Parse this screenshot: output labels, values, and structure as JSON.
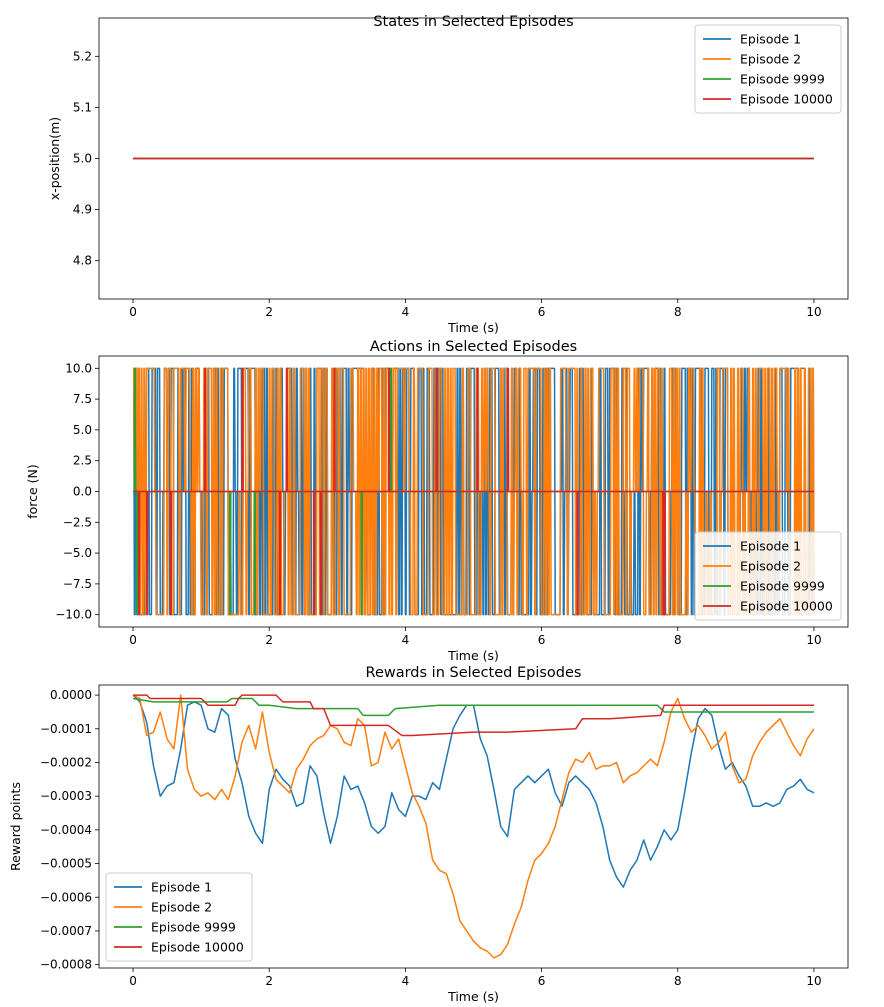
{
  "chart_data": [
    {
      "type": "line",
      "title": "States in Selected Episodes",
      "xlabel": "Time (s)",
      "ylabel": "x-position(m)",
      "xlim": [
        -0.5,
        10.5
      ],
      "ylim": [
        4.725,
        5.275
      ],
      "xticks": [
        0,
        2,
        4,
        6,
        8,
        10
      ],
      "yticks": [
        4.8,
        4.9,
        5.0,
        5.1,
        5.2
      ],
      "ytick_labels": [
        "4.8",
        "4.9",
        "5.0",
        "5.1",
        "5.2"
      ],
      "legend_loc": "upper right",
      "grid": false,
      "series": [
        {
          "name": "Episode 1",
          "color": "#1f77b4",
          "x": [
            0,
            10
          ],
          "y": [
            5.0,
            5.0
          ]
        },
        {
          "name": "Episode 2",
          "color": "#ff7f0e",
          "x": [
            0,
            10
          ],
          "y": [
            5.0,
            5.0
          ]
        },
        {
          "name": "Episode 9999",
          "color": "#2ca02c",
          "x": [
            0,
            10
          ],
          "y": [
            5.0,
            5.0
          ]
        },
        {
          "name": "Episode 10000",
          "color": "#d62728",
          "x": [
            0,
            10
          ],
          "y": [
            5.0,
            5.0
          ]
        }
      ]
    },
    {
      "type": "line",
      "title": "Actions in Selected Episodes",
      "xlabel": "Time (s)",
      "ylabel": "force (N)",
      "xlim": [
        -0.5,
        10.5
      ],
      "ylim": [
        -11,
        11
      ],
      "xticks": [
        0,
        2,
        4,
        6,
        8,
        10
      ],
      "yticks": [
        -10.0,
        -7.5,
        -5.0,
        -2.5,
        0.0,
        2.5,
        5.0,
        7.5,
        10.0
      ],
      "ytick_labels": [
        "−10.0",
        "−7.5",
        "−5.0",
        "−2.5",
        "0.0",
        "2.5",
        "5.0",
        "7.5",
        "10.0"
      ],
      "legend_loc": "lower right",
      "grid": false,
      "series": [
        {
          "name": "Episode 1",
          "color": "#1f77b4",
          "levels": [
            -10,
            0,
            10
          ],
          "duration": 10,
          "samples": 500,
          "note_pattern": "bang-bang"
        },
        {
          "name": "Episode 2",
          "color": "#ff7f0e",
          "levels": [
            -10,
            0,
            10
          ],
          "duration": 10,
          "samples": 500
        },
        {
          "name": "Episode 9999",
          "color": "#2ca02c",
          "baseline": 0,
          "spikes": [
            {
              "x": 0.02,
              "y": 10
            },
            {
              "x": 0.05,
              "y": -10
            },
            {
              "x": 1.42,
              "y": -10
            },
            {
              "x": 1.78,
              "y": -10
            },
            {
              "x": 3.35,
              "y": -10
            },
            {
              "x": 3.78,
              "y": 10
            }
          ]
        },
        {
          "name": "Episode 10000",
          "color": "#d62728",
          "baseline": 0,
          "spikes": [
            {
              "x": 0.08,
              "y": -10
            },
            {
              "x": 0.2,
              "y": -10
            },
            {
              "x": 0.55,
              "y": -10
            },
            {
              "x": 1.05,
              "y": 10
            },
            {
              "x": 1.6,
              "y": 10
            },
            {
              "x": 2.15,
              "y": -10
            },
            {
              "x": 2.25,
              "y": 10
            },
            {
              "x": 2.65,
              "y": -10
            },
            {
              "x": 2.75,
              "y": -10
            },
            {
              "x": 2.95,
              "y": 10
            },
            {
              "x": 3.75,
              "y": 10
            },
            {
              "x": 4.45,
              "y": 10
            },
            {
              "x": 5.05,
              "y": 10
            },
            {
              "x": 5.5,
              "y": 10
            },
            {
              "x": 6.52,
              "y": -10
            },
            {
              "x": 7.78,
              "y": -10
            },
            {
              "x": 7.8,
              "y": -10
            }
          ]
        }
      ]
    },
    {
      "type": "line",
      "title": "Rewards in Selected Episodes",
      "xlabel": "Time (s)",
      "ylabel": "Reward points",
      "xlim": [
        -0.5,
        10.5
      ],
      "ylim": [
        -0.00081,
        3e-05
      ],
      "xticks": [
        0,
        2,
        4,
        6,
        8,
        10
      ],
      "yticks": [
        -0.0008,
        -0.0007,
        -0.0006,
        -0.0005,
        -0.0004,
        -0.0003,
        -0.0002,
        -0.0001,
        0.0
      ],
      "ytick_labels": [
        "−0.0008",
        "−0.0007",
        "−0.0006",
        "−0.0005",
        "−0.0004",
        "−0.0003",
        "−0.0002",
        "−0.0001",
        "0.0000"
      ],
      "legend_loc": "lower left",
      "grid": false,
      "series": [
        {
          "name": "Episode 1",
          "color": "#1f77b4",
          "x": [
            0,
            0.1,
            0.2,
            0.3,
            0.4,
            0.5,
            0.6,
            0.7,
            0.8,
            0.9,
            1.0,
            1.1,
            1.2,
            1.3,
            1.4,
            1.5,
            1.6,
            1.7,
            1.8,
            1.9,
            2.0,
            2.1,
            2.2,
            2.3,
            2.4,
            2.5,
            2.6,
            2.7,
            2.8,
            2.9,
            3.0,
            3.1,
            3.2,
            3.3,
            3.4,
            3.5,
            3.6,
            3.7,
            3.8,
            3.9,
            4.0,
            4.1,
            4.2,
            4.3,
            4.4,
            4.5,
            4.6,
            4.7,
            4.8,
            4.9,
            5.0,
            5.1,
            5.2,
            5.3,
            5.4,
            5.5,
            5.6,
            5.7,
            5.8,
            5.9,
            6.0,
            6.1,
            6.2,
            6.3,
            6.4,
            6.5,
            6.6,
            6.7,
            6.8,
            6.9,
            7.0,
            7.1,
            7.2,
            7.3,
            7.4,
            7.5,
            7.6,
            7.7,
            7.8,
            7.9,
            8.0,
            8.1,
            8.2,
            8.3,
            8.4,
            8.5,
            8.6,
            8.7,
            8.8,
            8.9,
            9.0,
            9.1,
            9.2,
            9.3,
            9.4,
            9.5,
            9.6,
            9.7,
            9.8,
            9.9,
            10.0
          ],
          "y": [
            0,
            -2e-05,
            -8e-05,
            -0.00021,
            -0.0003,
            -0.00027,
            -0.00026,
            -0.00016,
            -3e-05,
            -2e-05,
            -3e-05,
            -0.0001,
            -0.00011,
            -4e-05,
            -6e-05,
            -0.00019,
            -0.00026,
            -0.00036,
            -0.00041,
            -0.00044,
            -0.00028,
            -0.00022,
            -0.00025,
            -0.00027,
            -0.00033,
            -0.00032,
            -0.00021,
            -0.00024,
            -0.00035,
            -0.00044,
            -0.00036,
            -0.00024,
            -0.00028,
            -0.00027,
            -0.00032,
            -0.00039,
            -0.00041,
            -0.00039,
            -0.00029,
            -0.00034,
            -0.00036,
            -0.0003,
            -0.0003,
            -0.00031,
            -0.00026,
            -0.00028,
            -0.00019,
            -0.0001,
            -6e-05,
            -3e-05,
            -3e-05,
            -0.00013,
            -0.00018,
            -0.00028,
            -0.00039,
            -0.00042,
            -0.00028,
            -0.00026,
            -0.00024,
            -0.00026,
            -0.00024,
            -0.00022,
            -0.00029,
            -0.00033,
            -0.00026,
            -0.00024,
            -0.00026,
            -0.00028,
            -0.00032,
            -0.00039,
            -0.00049,
            -0.00054,
            -0.00057,
            -0.00052,
            -0.00049,
            -0.00043,
            -0.00049,
            -0.00045,
            -0.0004,
            -0.00043,
            -0.0004,
            -0.00029,
            -0.00017,
            -7e-05,
            -4e-05,
            -6e-05,
            -0.00015,
            -0.00022,
            -0.0002,
            -0.00024,
            -0.00027,
            -0.00033,
            -0.00033,
            -0.00032,
            -0.00033,
            -0.00032,
            -0.00028,
            -0.00027,
            -0.00025,
            -0.00028,
            -0.00029
          ]
        },
        {
          "name": "Episode 2",
          "color": "#ff7f0e",
          "x": [
            0,
            0.1,
            0.2,
            0.3,
            0.4,
            0.5,
            0.6,
            0.7,
            0.8,
            0.9,
            1.0,
            1.1,
            1.2,
            1.3,
            1.4,
            1.5,
            1.6,
            1.7,
            1.8,
            1.9,
            2.0,
            2.1,
            2.2,
            2.3,
            2.4,
            2.5,
            2.6,
            2.7,
            2.8,
            2.9,
            3.0,
            3.1,
            3.2,
            3.3,
            3.4,
            3.5,
            3.6,
            3.7,
            3.8,
            3.9,
            4.0,
            4.1,
            4.2,
            4.3,
            4.4,
            4.5,
            4.6,
            4.7,
            4.8,
            4.9,
            5.0,
            5.1,
            5.2,
            5.3,
            5.4,
            5.5,
            5.6,
            5.7,
            5.8,
            5.9,
            6.0,
            6.1,
            6.2,
            6.3,
            6.4,
            6.5,
            6.6,
            6.7,
            6.8,
            6.9,
            7.0,
            7.1,
            7.2,
            7.3,
            7.4,
            7.5,
            7.6,
            7.7,
            7.8,
            7.9,
            8.0,
            8.1,
            8.2,
            8.3,
            8.4,
            8.5,
            8.6,
            8.7,
            8.8,
            8.9,
            9.0,
            9.1,
            9.2,
            9.3,
            9.4,
            9.5,
            9.6,
            9.7,
            9.8,
            9.9,
            10.0
          ],
          "y": [
            0,
            -1e-05,
            -0.00012,
            -0.00011,
            -5e-05,
            -0.00013,
            -0.00016,
            0,
            -0.00022,
            -0.00028,
            -0.0003,
            -0.00029,
            -0.00031,
            -0.00028,
            -0.00031,
            -0.00024,
            -0.00014,
            -9e-05,
            -0.00016,
            -5e-05,
            -0.00017,
            -0.00025,
            -0.00027,
            -0.00029,
            -0.00022,
            -0.00019,
            -0.00015,
            -0.00013,
            -0.00012,
            -9e-05,
            -0.0001,
            -0.00014,
            -0.00015,
            -7e-05,
            -9e-05,
            -0.00021,
            -0.0002,
            -0.00011,
            -0.00016,
            -0.00013,
            -0.00021,
            -0.00029,
            -0.00033,
            -0.00038,
            -0.00049,
            -0.00052,
            -0.00053,
            -0.00059,
            -0.00067,
            -0.0007,
            -0.00073,
            -0.00075,
            -0.00076,
            -0.00078,
            -0.00077,
            -0.00074,
            -0.00068,
            -0.00063,
            -0.00055,
            -0.00049,
            -0.00047,
            -0.00044,
            -0.00039,
            -0.00031,
            -0.00023,
            -0.00019,
            -0.0002,
            -0.00017,
            -0.00022,
            -0.00021,
            -0.00021,
            -0.0002,
            -0.00026,
            -0.00024,
            -0.00023,
            -0.00021,
            -0.00019,
            -0.00021,
            -0.00014,
            -5e-05,
            -1e-05,
            -7e-05,
            -0.00011,
            -9e-05,
            -0.00012,
            -0.00016,
            -0.00014,
            -0.00011,
            -0.00021,
            -0.00026,
            -0.00025,
            -0.00018,
            -0.00014,
            -0.00011,
            -9e-05,
            -7e-05,
            -0.00011,
            -0.00015,
            -0.00018,
            -0.00013,
            -0.0001
          ]
        },
        {
          "name": "Episode 9999",
          "color": "#2ca02c",
          "x": [
            0,
            0.3,
            0.5,
            1.0,
            1.38,
            1.45,
            1.6,
            1.75,
            1.85,
            2.0,
            2.4,
            3.3,
            3.38,
            3.45,
            3.75,
            3.85,
            4.5,
            6.0,
            7.0,
            7.7,
            7.8,
            8.0,
            9.0,
            10.0
          ],
          "y": [
            -1e-05,
            -2e-05,
            -2e-05,
            -2e-05,
            -2e-05,
            -1e-05,
            -1e-05,
            -1e-05,
            -3e-05,
            -3e-05,
            -4e-05,
            -4e-05,
            -6e-05,
            -6e-05,
            -6e-05,
            -4e-05,
            -3e-05,
            -3e-05,
            -3e-05,
            -3e-05,
            -5e-05,
            -5e-05,
            -5e-05,
            -5e-05
          ]
        },
        {
          "name": "Episode 10000",
          "color": "#d62728",
          "x": [
            0,
            0.1,
            0.2,
            0.25,
            0.6,
            1.0,
            1.1,
            1.2,
            1.5,
            1.55,
            1.6,
            2.1,
            2.2,
            2.6,
            2.65,
            2.8,
            2.9,
            3.4,
            3.75,
            3.95,
            4.1,
            5.0,
            5.5,
            6.5,
            6.6,
            7.0,
            7.75,
            7.8,
            8.0,
            9.0,
            10.0
          ],
          "y": [
            0,
            0,
            0,
            -1e-05,
            -1e-05,
            -1e-05,
            -3e-05,
            -3e-05,
            -3e-05,
            -1e-05,
            0,
            0,
            -2e-05,
            -2e-05,
            -4e-05,
            -4e-05,
            -9e-05,
            -9e-05,
            -9e-05,
            -0.00012,
            -0.00012,
            -0.00011,
            -0.00011,
            -0.0001,
            -7e-05,
            -7e-05,
            -6e-05,
            -3e-05,
            -3e-05,
            -3e-05,
            -3e-05
          ]
        }
      ]
    }
  ]
}
